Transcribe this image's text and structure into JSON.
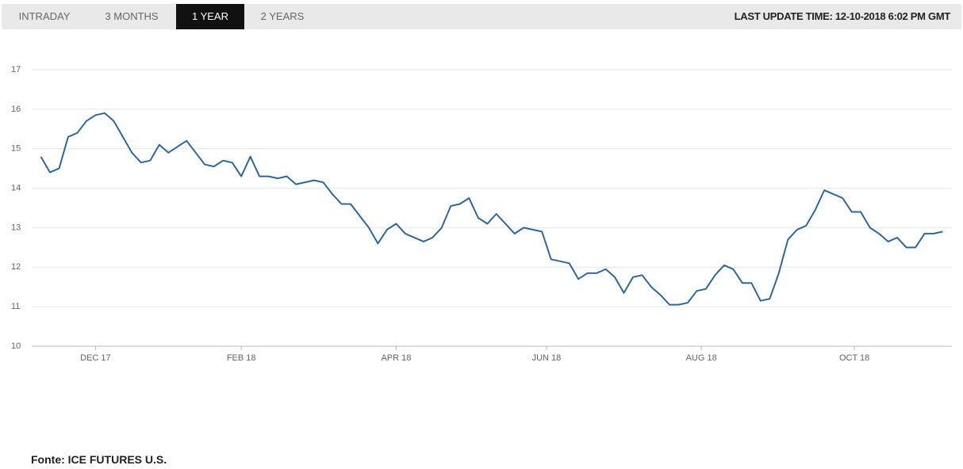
{
  "tabs": [
    "INTRADAY",
    "3 MONTHS",
    "1 YEAR",
    "2 YEARS"
  ],
  "last_update": "LAST UPDATE TIME: 12-10-2018 6:02 PM GMT",
  "source": "Fonte: ICE FUTURES U.S.",
  "chart_data": {
    "type": "line",
    "x": [
      0,
      1,
      2,
      3,
      4,
      5,
      6,
      7,
      8,
      9,
      10,
      11,
      12,
      13,
      14,
      15,
      16,
      17,
      18,
      19,
      20,
      21,
      22,
      23,
      24,
      25,
      26,
      27,
      28,
      29,
      30,
      31,
      32,
      33,
      34,
      35,
      36,
      37,
      38,
      39,
      40,
      41,
      42,
      43,
      44,
      45,
      46,
      47,
      48,
      49,
      50,
      51,
      52,
      53,
      54,
      55,
      56,
      57,
      58,
      59,
      60,
      61,
      62,
      63,
      64,
      65,
      66,
      67,
      68,
      69,
      70,
      71,
      72,
      73,
      74,
      75,
      76,
      77,
      78,
      79,
      80,
      81,
      82,
      83,
      84,
      85,
      86,
      87,
      88,
      89,
      90,
      91,
      92,
      93,
      94,
      95,
      96,
      97,
      98,
      99
    ],
    "series": [
      {
        "color": "#2f679d",
        "values": [
          14.8,
          14.4,
          14.5,
          15.3,
          15.4,
          15.7,
          15.85,
          15.9,
          15.7,
          15.3,
          14.9,
          14.65,
          14.7,
          15.1,
          14.9,
          15.05,
          15.2,
          14.9,
          14.6,
          14.55,
          14.7,
          14.65,
          14.3,
          14.8,
          14.3,
          14.3,
          14.25,
          14.3,
          14.1,
          14.15,
          14.2,
          14.15,
          13.85,
          13.6,
          13.6,
          13.3,
          13.0,
          12.6,
          12.95,
          13.1,
          12.85,
          12.75,
          12.65,
          12.75,
          13.0,
          13.55,
          13.6,
          13.75,
          13.25,
          13.1,
          13.35,
          13.1,
          12.85,
          13.0,
          12.95,
          12.9,
          12.2,
          12.15,
          12.1,
          11.7,
          11.85,
          11.85,
          11.95,
          11.75,
          11.35,
          11.75,
          11.8,
          11.5,
          11.3,
          11.05,
          11.05,
          11.1,
          11.4,
          11.45,
          11.8,
          12.05,
          11.95,
          11.6,
          11.6,
          11.15,
          11.2,
          11.85,
          12.7,
          12.95,
          13.05,
          13.45,
          13.95,
          13.85,
          13.75,
          13.4,
          13.4,
          13.0,
          12.85,
          12.65,
          12.75,
          12.5,
          12.5,
          12.85,
          12.85,
          12.9
        ]
      }
    ],
    "xlim": [
      -1,
      100
    ],
    "xticks": [
      {
        "value": 6,
        "label": "DEC 17"
      },
      {
        "value": 22,
        "label": "FEB 18"
      },
      {
        "value": 39,
        "label": "APR 18"
      },
      {
        "value": 55.5,
        "label": "JUN 18"
      },
      {
        "value": 72.5,
        "label": "AUG 18"
      },
      {
        "value": 89.3,
        "label": "OCT 18"
      }
    ],
    "ylim": [
      10,
      17
    ],
    "yticks": [
      10,
      11,
      12,
      13,
      14,
      15,
      16,
      17
    ],
    "grid": true
  }
}
